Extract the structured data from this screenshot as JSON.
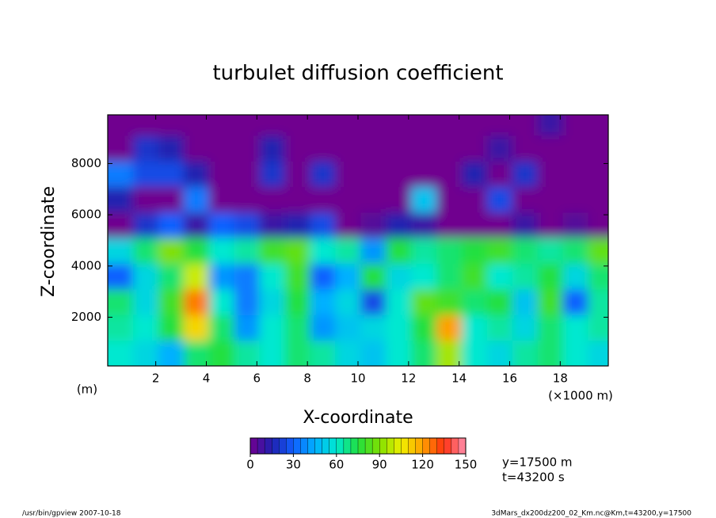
{
  "chart_data": {
    "type": "contour",
    "title": "turbulet diffusion coefficient",
    "x_label": "X-coordinate",
    "y_label": "Z-coordinate",
    "x_unit": "(×1000 m)",
    "y_unit": "(m)",
    "annotations": [
      "y=17500 m",
      "t=43200 s"
    ],
    "footer_left": "/usr/bin/gpview  2007-10-18",
    "footer_right": "3dMars_dx200dz200_02_Km.nc@Km,t=43200,y=17500",
    "xlim": [
      0.1,
      19.9
    ],
    "ylim": [
      100,
      9900
    ],
    "xticks": [
      2,
      4,
      6,
      8,
      10,
      12,
      14,
      16,
      18
    ],
    "yticks": [
      2000,
      4000,
      6000,
      8000
    ],
    "x": [
      0.6,
      1.6,
      2.6,
      3.6,
      4.6,
      5.6,
      6.6,
      7.6,
      8.6,
      9.6,
      10.6,
      11.6,
      12.6,
      13.6,
      14.6,
      15.6,
      16.6,
      17.6,
      18.6,
      19.6
    ],
    "y": [
      600,
      1600,
      2600,
      3600,
      4600,
      5600,
      6600,
      7600,
      8600,
      9600
    ],
    "values": [
      [
        60,
        55,
        45,
        70,
        75,
        65,
        60,
        70,
        65,
        55,
        50,
        60,
        70,
        95,
        60,
        55,
        65,
        70,
        60,
        55
      ],
      [
        65,
        60,
        75,
        110,
        70,
        40,
        60,
        70,
        40,
        50,
        55,
        60,
        75,
        120,
        60,
        65,
        55,
        70,
        60,
        65
      ],
      [
        70,
        55,
        80,
        125,
        60,
        35,
        55,
        75,
        45,
        55,
        25,
        60,
        85,
        80,
        70,
        75,
        50,
        80,
        30,
        65
      ],
      [
        30,
        55,
        70,
        100,
        40,
        35,
        60,
        80,
        30,
        45,
        75,
        55,
        60,
        70,
        80,
        60,
        65,
        75,
        55,
        70
      ],
      [
        55,
        70,
        90,
        75,
        60,
        65,
        80,
        85,
        60,
        65,
        40,
        75,
        65,
        70,
        75,
        80,
        70,
        65,
        70,
        85
      ],
      [
        0,
        20,
        30,
        10,
        30,
        25,
        10,
        15,
        25,
        0,
        5,
        15,
        10,
        0,
        0,
        0,
        10,
        0,
        5,
        0
      ],
      [
        15,
        0,
        0,
        35,
        0,
        0,
        0,
        0,
        0,
        0,
        0,
        0,
        50,
        0,
        0,
        25,
        0,
        0,
        0,
        0
      ],
      [
        35,
        25,
        25,
        15,
        0,
        0,
        20,
        0,
        20,
        0,
        0,
        0,
        0,
        0,
        15,
        0,
        20,
        0,
        0,
        0
      ],
      [
        0,
        20,
        15,
        0,
        0,
        0,
        15,
        0,
        0,
        0,
        0,
        0,
        0,
        0,
        0,
        10,
        0,
        0,
        0,
        0
      ],
      [
        0,
        0,
        0,
        0,
        0,
        0,
        0,
        0,
        0,
        0,
        0,
        0,
        0,
        0,
        0,
        0,
        0,
        10,
        0,
        0
      ]
    ],
    "colorbar": {
      "lim": [
        0,
        150
      ],
      "ticks": [
        0,
        30,
        60,
        90,
        120,
        150
      ],
      "colors": [
        "#70008f",
        "#2020b0",
        "#1060ff",
        "#00b0ff",
        "#00e8d0",
        "#20e040",
        "#80e000",
        "#f0f000",
        "#ffa000",
        "#ff3010",
        "#ff90b0"
      ]
    }
  }
}
